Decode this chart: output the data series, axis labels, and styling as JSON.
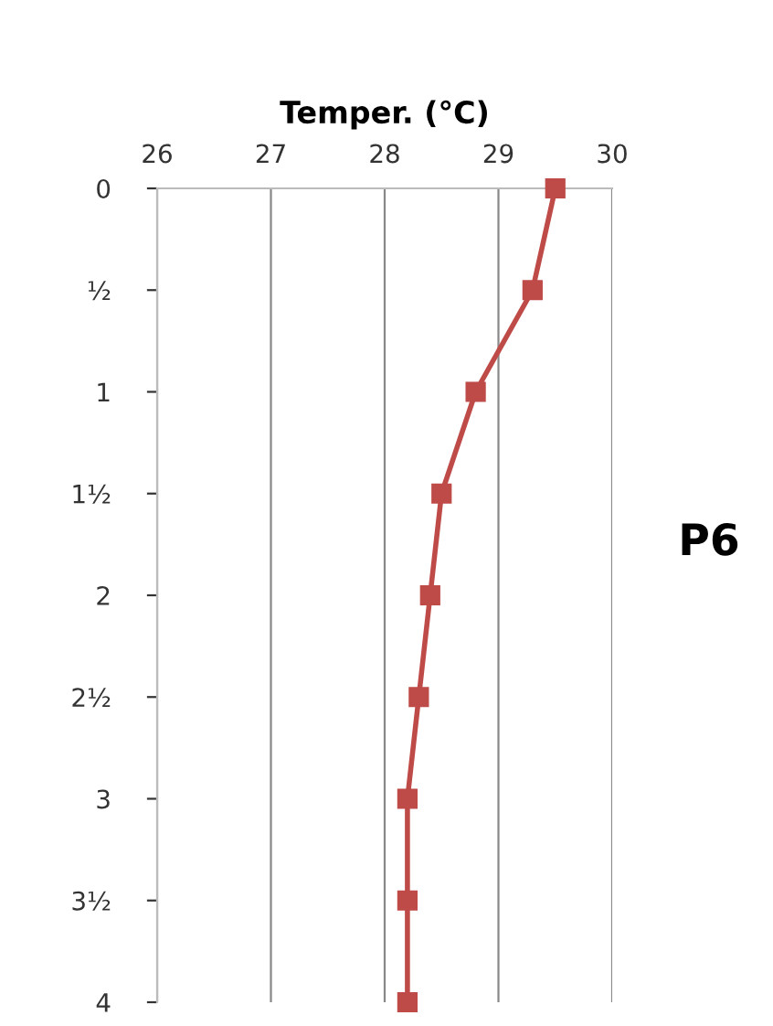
{
  "chart_data": {
    "type": "line",
    "xlabel": "Temper. (°C)",
    "series": [
      {
        "color": "#be4b48",
        "x": [
          29.5,
          29.3,
          28.8,
          28.5,
          28.4,
          28.3,
          28.2,
          28.2,
          28.2
        ],
        "values": [
          0,
          0.5,
          1,
          1.5,
          2,
          2.5,
          3,
          3.5,
          4
        ]
      }
    ],
    "xlim": [
      26,
      30
    ],
    "xticks": [
      26,
      27,
      28,
      29,
      30
    ],
    "ylim": [
      4,
      0
    ],
    "yticks": [
      0,
      {
        "value": 0.5,
        "label": "½"
      },
      1,
      {
        "value": 1.5,
        "label": "1½"
      },
      2,
      {
        "value": 2.5,
        "label": "2½"
      },
      3,
      {
        "value": 3.5,
        "label": "3½"
      },
      4
    ],
    "grid": "x",
    "marker": "square",
    "line_style": "solid",
    "annotations": [
      "P6"
    ]
  }
}
